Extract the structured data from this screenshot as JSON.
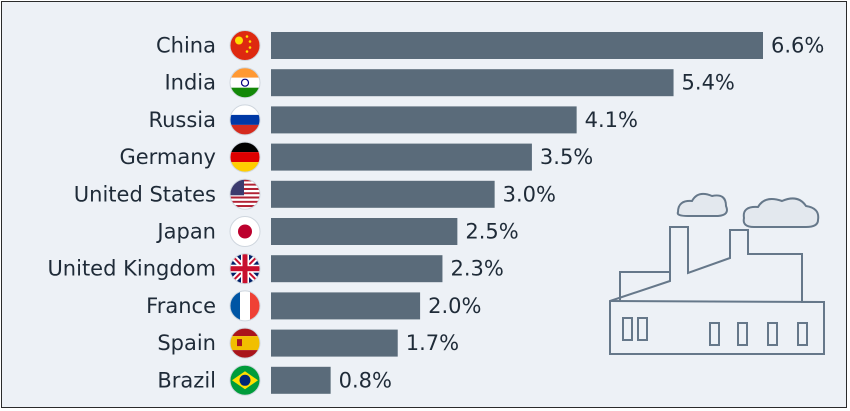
{
  "chart_data": {
    "type": "bar",
    "orientation": "horizontal",
    "categories": [
      "China",
      "India",
      "Russia",
      "Germany",
      "United States",
      "Japan",
      "United Kingdom",
      "France",
      "Spain",
      "Brazil"
    ],
    "values": [
      6.6,
      5.4,
      4.1,
      3.5,
      3.0,
      2.5,
      2.3,
      2.0,
      1.7,
      0.8
    ],
    "value_labels": [
      "6.6%",
      "5.4%",
      "4.1%",
      "3.5%",
      "3.0%",
      "2.5%",
      "2.3%",
      "2.0%",
      "1.7%",
      "0.8%"
    ],
    "unit": "%",
    "flags": [
      "china-flag-icon",
      "india-flag-icon",
      "russia-flag-icon",
      "germany-flag-icon",
      "usa-flag-icon",
      "japan-flag-icon",
      "uk-flag-icon",
      "france-flag-icon",
      "spain-flag-icon",
      "brazil-flag-icon"
    ],
    "xlim": [
      0,
      6.6
    ],
    "grid": false,
    "legend": "none",
    "colors": {
      "bar": "#5a6b7a",
      "background": "#edf1f6",
      "text": "#1f2b38"
    },
    "decoration": "factory-icon"
  }
}
